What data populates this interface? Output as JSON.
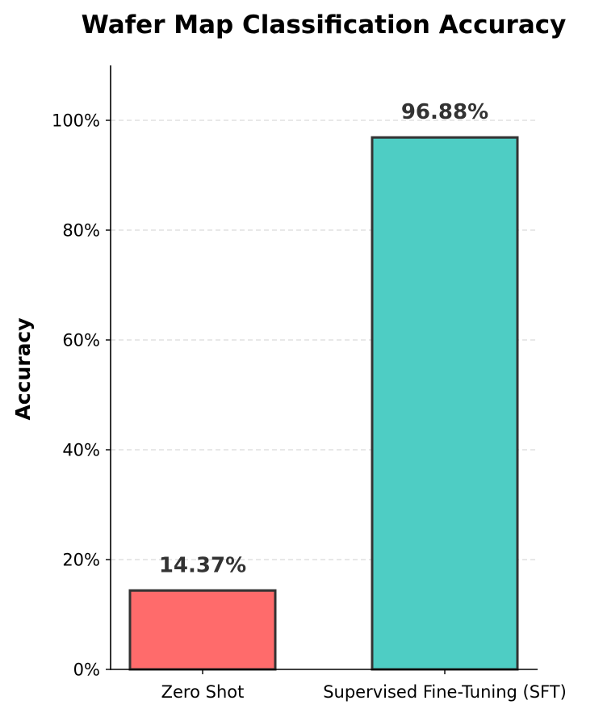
{
  "chart_data": {
    "type": "bar",
    "title": "Wafer Map Classification Accuracy",
    "xlabel": "",
    "ylabel": "Accuracy",
    "categories": [
      "Zero Shot",
      "Supervised Fine-Tuning (SFT)"
    ],
    "values": [
      14.37,
      96.88
    ],
    "data_labels": [
      "14.37%",
      "96.88%"
    ],
    "colors": [
      "#FF6B6B",
      "#4ECDC4"
    ],
    "edge_color": "#333333",
    "ylim": [
      0,
      110
    ],
    "yticks": [
      0,
      20,
      40,
      60,
      80,
      100
    ],
    "ytick_labels": [
      "0%",
      "20%",
      "40%",
      "60%",
      "80%",
      "100%"
    ],
    "grid": "y-dashed",
    "legend": "none"
  }
}
